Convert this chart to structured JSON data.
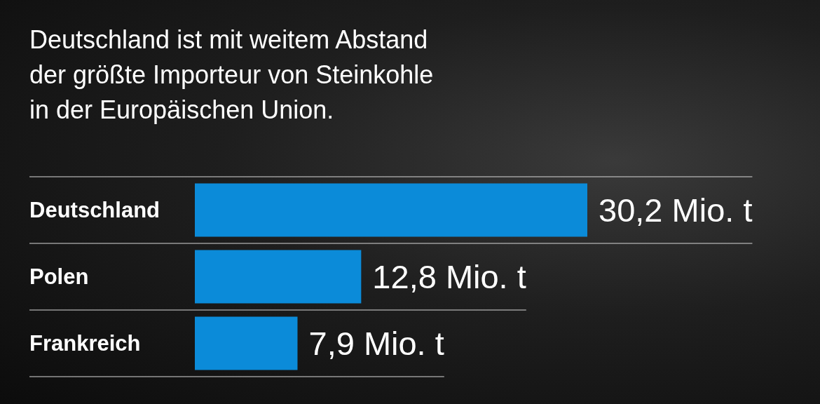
{
  "chart_data": {
    "type": "bar",
    "orientation": "horizontal",
    "title": "Deutschland ist mit weitem Abstand\nder größte Importeur von Steinkohle\nin der Europäischen Union.",
    "categories": [
      "Deutschland",
      "Polen",
      "Frankreich"
    ],
    "values": [
      30.2,
      12.8,
      7.9
    ],
    "value_labels": [
      "30,2 Mio. t",
      "12,8 Mio. t",
      "7,9 Mio. t"
    ],
    "color": "#0b8bd9",
    "grid": "y"
  }
}
